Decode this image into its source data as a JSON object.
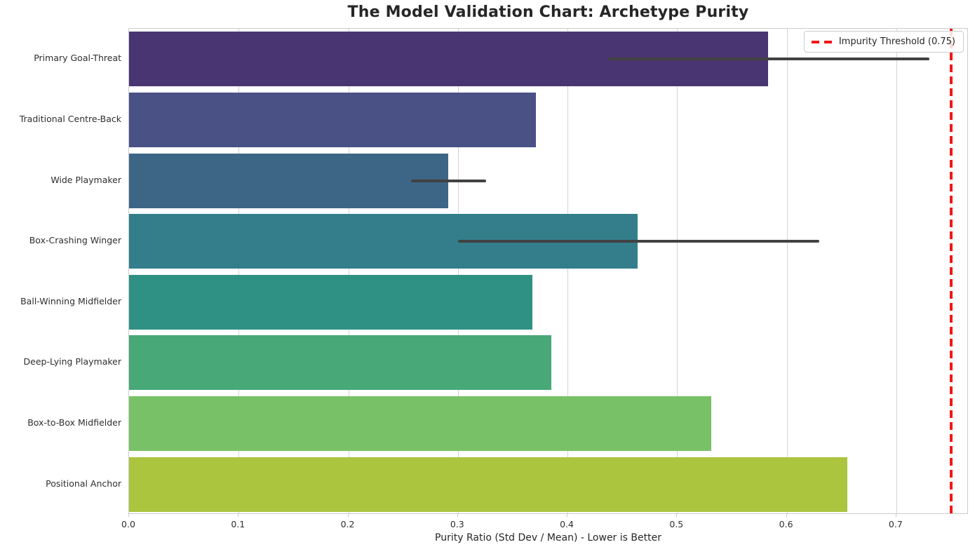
{
  "title": "The Model Validation Chart: Archetype Purity",
  "chart_data": {
    "type": "bar",
    "orientation": "horizontal",
    "title": "The Model Validation Chart: Archetype Purity",
    "xlabel": "Purity Ratio (Std Dev / Mean) - Lower is Better",
    "ylabel": "",
    "grid": true,
    "xlim": [
      0,
      0.766
    ],
    "xticks": [
      0.0,
      0.1,
      0.2,
      0.3,
      0.4,
      0.5,
      0.6,
      0.7
    ],
    "xtick_labels": [
      "0.0",
      "0.1",
      "0.2",
      "0.3",
      "0.4",
      "0.5",
      "0.6",
      "0.7"
    ],
    "categories": [
      "Primary Goal-Threat",
      "Traditional Centre-Back",
      "Wide Playmaker",
      "Box-Crashing Winger",
      "Ball-Winning Midfielder",
      "Deep-Lying Playmaker",
      "Box-to-Box Midfielder",
      "Positional Anchor"
    ],
    "values": [
      0.583,
      0.371,
      0.291,
      0.464,
      0.368,
      0.385,
      0.531,
      0.655
    ],
    "bar_colors": [
      "#493572",
      "#495185",
      "#3d6686",
      "#347e8b",
      "#2f9184",
      "#48a878",
      "#79c167",
      "#abc53f"
    ],
    "error_bars": [
      {
        "low": 0.437,
        "high": 0.73
      },
      null,
      {
        "low": 0.257,
        "high": 0.326
      },
      {
        "low": 0.3,
        "high": 0.63
      },
      null,
      null,
      null,
      null
    ],
    "error_color": "#424242",
    "threshold": {
      "value": 0.75,
      "color": "#f41616",
      "line_style": "dashed",
      "label": "Impurity Threshold (0.75)"
    },
    "legend": {
      "position": "upper right",
      "entries": [
        {
          "label": "Impurity Threshold (0.75)",
          "color": "#f41616",
          "line_style": "dashed"
        }
      ]
    }
  }
}
